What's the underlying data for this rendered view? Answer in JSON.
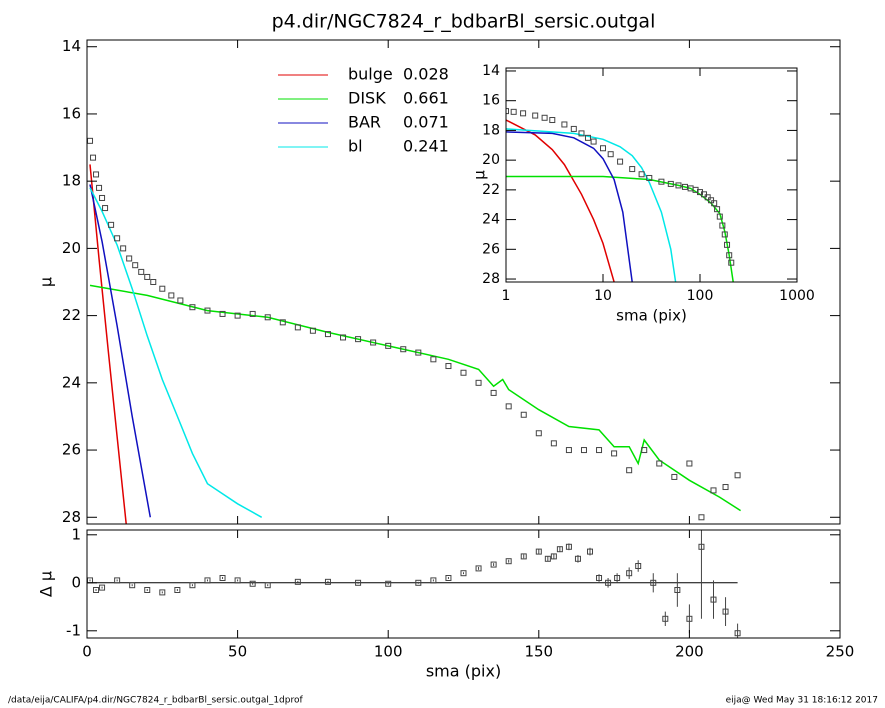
{
  "chart_data": [
    {
      "type": "line",
      "title": "p4.dir/NGC7824_r_bdbarBl_sersic.outgal",
      "ylabel": "μ",
      "xlim": [
        0,
        250
      ],
      "ylim": [
        13.8,
        28.2
      ],
      "xticks": [
        0,
        50,
        100,
        150,
        200,
        250
      ],
      "yticks": [
        14,
        16,
        18,
        20,
        22,
        24,
        26,
        28
      ],
      "legend": "upper center",
      "points": {
        "color": "#444444",
        "x": [
          1,
          2,
          3,
          4,
          5,
          6,
          8,
          10,
          12,
          14,
          16,
          18,
          20,
          22,
          25,
          28,
          31,
          35,
          40,
          45,
          50,
          55,
          60,
          65,
          70,
          75,
          80,
          85,
          90,
          95,
          100,
          105,
          110,
          115,
          120,
          125,
          130,
          135,
          140,
          145,
          150,
          155,
          160,
          165,
          170,
          175,
          180,
          185,
          190,
          195,
          200,
          204,
          208,
          212,
          216
        ],
        "values": [
          16.8,
          17.3,
          17.8,
          18.2,
          18.5,
          18.8,
          19.3,
          19.7,
          20.0,
          20.3,
          20.5,
          20.7,
          20.85,
          21.0,
          21.2,
          21.4,
          21.55,
          21.75,
          21.85,
          21.95,
          22.0,
          21.95,
          22.05,
          22.2,
          22.35,
          22.45,
          22.55,
          22.65,
          22.7,
          22.8,
          22.9,
          23.0,
          23.1,
          23.3,
          23.5,
          23.7,
          24.0,
          24.3,
          24.7,
          24.95,
          25.5,
          25.8,
          26.0,
          26.0,
          26.0,
          26.1,
          26.6,
          26.0,
          26.4,
          26.8,
          26.4,
          28.0,
          27.2,
          27.1,
          26.75
        ]
      },
      "series": [
        {
          "name": "bulge",
          "fraction": 0.028,
          "color": "#e00000",
          "x": [
            1,
            4,
            7,
            10,
            13
          ],
          "values": [
            17.5,
            20.3,
            23.0,
            25.6,
            28.2
          ]
        },
        {
          "name": "DISK",
          "fraction": 0.661,
          "color": "#00e000",
          "x": [
            1,
            20,
            40,
            60,
            80,
            100,
            120,
            130,
            135,
            138,
            140,
            150,
            160,
            170,
            175,
            180,
            183,
            185,
            190,
            200,
            210,
            217
          ],
          "values": [
            21.1,
            21.4,
            21.85,
            22.05,
            22.5,
            22.9,
            23.3,
            23.6,
            24.1,
            23.9,
            24.2,
            24.8,
            25.3,
            25.4,
            25.9,
            25.9,
            26.4,
            25.7,
            26.3,
            26.9,
            27.4,
            27.8
          ]
        },
        {
          "name": "BAR",
          "fraction": 0.071,
          "color": "#1010c0",
          "x": [
            1,
            5,
            10,
            15,
            21
          ],
          "values": [
            18.1,
            19.8,
            22.3,
            25.0,
            28.0
          ]
        },
        {
          "name": "bl",
          "fraction": 0.241,
          "color": "#00e8e8",
          "x": [
            1,
            5,
            10,
            15,
            20,
            25,
            30,
            35,
            40,
            45,
            50,
            58
          ],
          "values": [
            18.2,
            18.9,
            19.9,
            21.2,
            22.6,
            23.9,
            25.0,
            26.1,
            27.0,
            27.3,
            27.6,
            28.0
          ]
        }
      ]
    },
    {
      "type": "scatter",
      "ylabel": "Δ μ",
      "xlabel": "sma (pix)",
      "xlim": [
        0,
        250
      ],
      "ylim": [
        1.1,
        -1.15
      ],
      "xticks": [
        0,
        50,
        100,
        150,
        200,
        250
      ],
      "yticks": [
        1,
        0,
        -1
      ],
      "zero_line": 0,
      "points": {
        "color": "#444444",
        "x": [
          1,
          3,
          5,
          10,
          15,
          20,
          25,
          30,
          35,
          40,
          45,
          50,
          55,
          60,
          70,
          80,
          90,
          100,
          110,
          115,
          120,
          125,
          130,
          135,
          140,
          145,
          150,
          153,
          155,
          157,
          160,
          163,
          167,
          170,
          173,
          176,
          180,
          183,
          188,
          192,
          196,
          200,
          204,
          208,
          212,
          216
        ],
        "values": [
          0.05,
          -0.15,
          -0.1,
          0.05,
          -0.05,
          -0.15,
          -0.2,
          -0.15,
          -0.05,
          0.05,
          0.1,
          0.05,
          -0.02,
          -0.05,
          0.02,
          0.02,
          0.0,
          -0.02,
          0.0,
          0.05,
          0.1,
          0.2,
          0.3,
          0.38,
          0.45,
          0.55,
          0.65,
          0.5,
          0.55,
          0.7,
          0.75,
          0.5,
          0.65,
          0.1,
          0.0,
          0.1,
          0.2,
          0.35,
          0.0,
          -0.75,
          -0.15,
          -0.75,
          0.75,
          -0.35,
          -0.6,
          -1.05
        ],
        "errors": [
          0.02,
          0.02,
          0.02,
          0.02,
          0.02,
          0.02,
          0.02,
          0.02,
          0.02,
          0.02,
          0.02,
          0.02,
          0.02,
          0.02,
          0.02,
          0.02,
          0.02,
          0.02,
          0.02,
          0.02,
          0.02,
          0.02,
          0.03,
          0.03,
          0.03,
          0.04,
          0.05,
          0.05,
          0.06,
          0.06,
          0.07,
          0.08,
          0.08,
          0.08,
          0.1,
          0.1,
          0.12,
          0.12,
          0.2,
          0.15,
          0.35,
          0.3,
          1.5,
          0.4,
          0.3,
          0.2
        ]
      }
    },
    {
      "type": "line",
      "ylabel": "μ",
      "xlabel": "sma (pix)",
      "xscale": "log",
      "xlim": [
        1,
        1000
      ],
      "ylim": [
        13.8,
        28.2
      ],
      "xticks": [
        1,
        10,
        100,
        1000
      ],
      "yticks": [
        14,
        16,
        18,
        20,
        22,
        24,
        26,
        28
      ],
      "points": {
        "color": "#444444",
        "x": [
          1,
          1.2,
          1.5,
          2,
          2.5,
          3,
          4,
          5,
          6,
          7,
          8,
          10,
          12,
          15,
          20,
          25,
          30,
          40,
          50,
          60,
          70,
          80,
          90,
          100,
          110,
          120,
          130,
          140,
          150,
          160,
          170,
          180,
          190,
          200,
          210
        ],
        "values": [
          16.7,
          16.75,
          16.85,
          17.0,
          17.15,
          17.3,
          17.6,
          17.9,
          18.2,
          18.5,
          18.75,
          19.2,
          19.6,
          20.1,
          20.6,
          20.95,
          21.2,
          21.45,
          21.6,
          21.7,
          21.8,
          21.9,
          22.0,
          22.15,
          22.3,
          22.5,
          22.7,
          22.9,
          23.3,
          23.8,
          24.4,
          25.0,
          25.7,
          26.4,
          26.9
        ]
      },
      "series": [
        {
          "color": "#e00000",
          "x": [
            1,
            2,
            3,
            4,
            6,
            8,
            10,
            13
          ],
          "values": [
            17.3,
            18.3,
            19.3,
            20.3,
            22.3,
            24.0,
            25.6,
            28.2
          ]
        },
        {
          "color": "#00e000",
          "x": [
            1,
            10,
            30,
            60,
            80,
            100,
            130,
            160,
            180,
            200,
            220
          ],
          "values": [
            21.1,
            21.1,
            21.3,
            21.7,
            21.9,
            22.3,
            22.9,
            23.6,
            24.8,
            26.4,
            28.2
          ]
        },
        {
          "color": "#1010c0",
          "x": [
            1,
            3,
            5,
            8,
            10,
            13,
            16,
            20
          ],
          "values": [
            18.1,
            18.2,
            18.5,
            19.2,
            19.9,
            21.3,
            23.5,
            28.2
          ]
        },
        {
          "color": "#00e8e8",
          "x": [
            1,
            5,
            10,
            15,
            20,
            25,
            30,
            40,
            50,
            56
          ],
          "values": [
            17.9,
            18.2,
            18.6,
            19.1,
            19.7,
            20.5,
            21.5,
            23.5,
            26.0,
            28.2
          ]
        }
      ]
    }
  ],
  "footer": {
    "left": "/data/eija/CALIFA/p4.dir/NGC7824_r_bdbarBl_sersic.outgal_1dprof",
    "right": "eija@  Wed May 31 18:16:12 2017"
  }
}
